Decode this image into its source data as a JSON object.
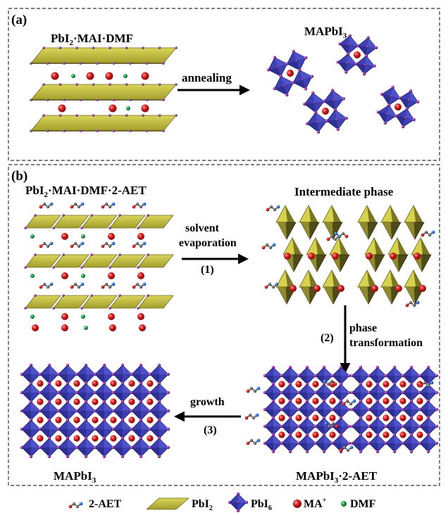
{
  "panel_a": {
    "label": "(a)",
    "left_title_base": "PbI",
    "left_title_sub": "2",
    "left_title_rest": "·MAI·DMF",
    "arrow_label": "annealing",
    "right_title_base": "MAPbI",
    "right_title_sub": "3"
  },
  "panel_b": {
    "label": "(b)",
    "top_left_title_base": "PbI",
    "top_left_title_sub": "2",
    "top_left_title_rest": "·MAI·DMF·2-AET",
    "top_right_title": "Intermediate phase",
    "step1_line1": "solvent",
    "step1_line2": "evaporation",
    "step1_num": "(1)",
    "step2_num": "(2)",
    "step2_line1": "phase",
    "step2_line2": "transformation",
    "step3_label": "growth",
    "step3_num": "(3)",
    "bottom_left_title_base": "MAPbI",
    "bottom_left_title_sub": "3",
    "bottom_right_title_base": "MAPbI",
    "bottom_right_title_sub": "3",
    "bottom_right_title_rest": "·2-AET"
  },
  "legend": {
    "aet": "2-AET",
    "pbi2_base": "PbI",
    "pbi2_sub": "2",
    "pbi6_base": "PbI",
    "pbi6_sub": "6",
    "ma_base": "MA",
    "ma_sup": "+",
    "dmf": "DMF"
  },
  "colors": {
    "pbi2_face": "#c6c23a",
    "pbi2_dark": "#5e5a1e",
    "octahedron": "#3d3fb3",
    "iodide": "#8a2d9e",
    "ma_cation": "#d31c1c",
    "dmf": "#1e9a48",
    "aet_blue": "#2a6fd4",
    "aet_gray": "#555555"
  }
}
